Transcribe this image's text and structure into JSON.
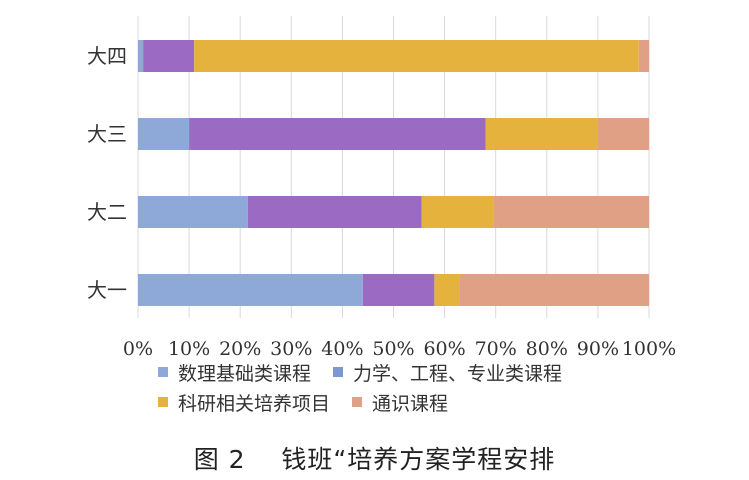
{
  "chart_data": {
    "type": "bar",
    "orientation": "horizontal",
    "stacked": true,
    "percent_stacked": true,
    "categories": [
      "大四",
      "大三",
      "大二",
      "大一"
    ],
    "series": [
      {
        "name": "数理基础类课程",
        "color": "#8ea9d8",
        "values": [
          1,
          10,
          21.5,
          44
        ]
      },
      {
        "name": "力学、工程、专业类课程",
        "color": "#9b6bc4",
        "values": [
          10,
          58,
          34,
          14
        ]
      },
      {
        "name": "科研相关培养项目",
        "color": "#e6b23e",
        "values": [
          87,
          22,
          14,
          5
        ]
      },
      {
        "name": "通识课程",
        "color": "#e0a085",
        "values": [
          2,
          10,
          30.5,
          37
        ]
      }
    ],
    "xlim": [
      0,
      100
    ],
    "xticks": [
      "0%",
      "10%",
      "20%",
      "30%",
      "40%",
      "50%",
      "60%",
      "70%",
      "80%",
      "90%",
      "100%"
    ],
    "grid": "vertical",
    "legend_position": "bottom"
  },
  "caption": {
    "label": "图 2",
    "title": "钱班“培养方案学程安排"
  }
}
